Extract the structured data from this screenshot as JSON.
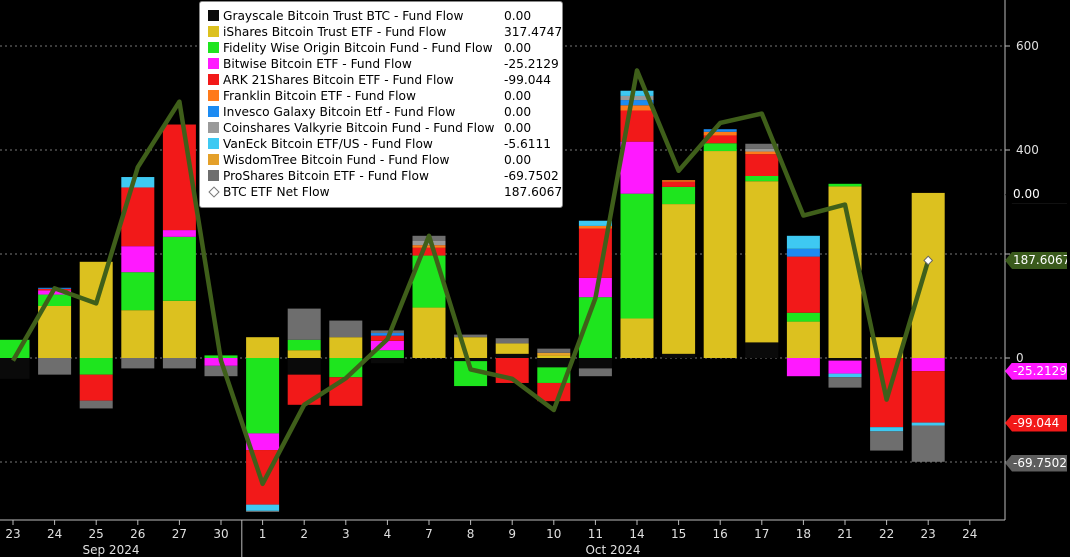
{
  "chart_data": {
    "type": "bar",
    "subtype": "stacked bar with net-flow line",
    "categories": [
      "23",
      "24",
      "25",
      "26",
      "27",
      "30",
      "1",
      "2",
      "3",
      "4",
      "7",
      "8",
      "9",
      "10",
      "11",
      "14",
      "15",
      "16",
      "17",
      "18",
      "21",
      "22",
      "23"
    ],
    "x_tick_labels": [
      "23",
      "24",
      "25",
      "26",
      "27",
      "30",
      "1",
      "2",
      "3",
      "4",
      "7",
      "8",
      "9",
      "10",
      "11",
      "14",
      "15",
      "16",
      "17",
      "18",
      "21",
      "22",
      "23",
      "24"
    ],
    "month_labels": [
      "Sep 2024",
      "Oct 2024"
    ],
    "y_ticks": [
      600,
      400,
      200,
      0,
      -200,
      -400
    ],
    "y_tick_labels": [
      "600",
      "400",
      "",
      "0",
      "",
      ""
    ],
    "ylim": [
      -300,
      680
    ],
    "grid": true,
    "legend_placement": "top-left",
    "series": [
      {
        "name": "Grayscale Bitcoin Trust BTC - Fund Flow",
        "color": "#0a0a0a",
        "legend_value": "0.00",
        "values": [
          -40,
          0,
          0,
          0,
          0,
          0,
          0,
          -32,
          0,
          -10,
          0,
          -6,
          8,
          -18,
          -20,
          0,
          8,
          0,
          30,
          0,
          -5,
          0,
          0
        ]
      },
      {
        "name": "iShares Bitcoin Trust ETF - Fund Flow",
        "color": "#dcc11f",
        "legend_value": "317.4747",
        "values": [
          0,
          100,
          185,
          92,
          110,
          0,
          40,
          15,
          40,
          0,
          97,
          40,
          20,
          5,
          0,
          76,
          288,
          398,
          310,
          70,
          330,
          40,
          317.4747
        ]
      },
      {
        "name": "Fidelity Wise Origin Bitcoin Fund - Fund Flow",
        "color": "#1ee51e",
        "legend_value": "0.00",
        "values": [
          35,
          22,
          -32,
          73,
          123,
          5,
          -145,
          20,
          -37,
          15,
          100,
          -48,
          0,
          -30,
          117,
          240,
          33,
          15,
          10,
          17,
          5,
          0,
          0
        ]
      },
      {
        "name": "Bitwise Bitcoin ETF - Fund Flow",
        "color": "#ff19ff",
        "legend_value": "-25.2129",
        "values": [
          0,
          8,
          0,
          50,
          13,
          -15,
          -32,
          0,
          0,
          18,
          0,
          0,
          0,
          0,
          37,
          100,
          0,
          0,
          0,
          -35,
          -25,
          0,
          -25.2129
        ]
      },
      {
        "name": "ARK 21Shares Bitcoin ETF - Fund Flow",
        "color": "#f21919",
        "legend_value": "-99.044",
        "values": [
          0,
          3,
          -50,
          113,
          203,
          0,
          -105,
          -58,
          -55,
          10,
          15,
          0,
          -48,
          -35,
          95,
          60,
          10,
          15,
          42,
          108,
          0,
          -133,
          -99.044
        ]
      },
      {
        "name": "Franklin Bitcoin ETF - Fund Flow",
        "color": "#ff7a1a",
        "legend_value": "0.00",
        "values": [
          0,
          0,
          0,
          0,
          0,
          0,
          0,
          0,
          0,
          0,
          5,
          0,
          0,
          0,
          5,
          10,
          3,
          7,
          5,
          0,
          0,
          0,
          0
        ]
      },
      {
        "name": "Invesco Galaxy Bitcoin Etf - Fund Flow",
        "color": "#1c8bf2",
        "legend_value": "0.00",
        "values": [
          0,
          2,
          0,
          0,
          0,
          0,
          0,
          0,
          0,
          5,
          0,
          0,
          0,
          0,
          0,
          10,
          0,
          5,
          0,
          15,
          0,
          0,
          0
        ]
      },
      {
        "name": "Coinshares Valkyrie Bitcoin Fund - Fund Flow",
        "color": "#9a9a9a",
        "legend_value": "0.00",
        "values": [
          0,
          0,
          0,
          0,
          0,
          0,
          0,
          0,
          0,
          0,
          8,
          0,
          0,
          0,
          0,
          8,
          0,
          0,
          5,
          0,
          0,
          0,
          0
        ]
      },
      {
        "name": "VanEck Bitcoin ETF/US - Fund Flow",
        "color": "#3ec9f2",
        "legend_value": "-5.6111",
        "values": [
          0,
          0,
          0,
          20,
          0,
          0,
          -12,
          0,
          0,
          0,
          0,
          0,
          0,
          0,
          10,
          10,
          0,
          0,
          0,
          25,
          -7,
          -8,
          -5.6111
        ]
      },
      {
        "name": "WisdomTree Bitcoin Fund - Fund Flow",
        "color": "#e4a02a",
        "legend_value": "0.00",
        "values": [
          0,
          0,
          0,
          0,
          0,
          0,
          0,
          0,
          0,
          0,
          0,
          0,
          0,
          5,
          0,
          0,
          0,
          0,
          0,
          0,
          0,
          0,
          0
        ]
      },
      {
        "name": "ProShares Bitcoin ETF - Fund Flow",
        "color": "#6e6e6e",
        "legend_value": "-69.7502",
        "values": [
          0,
          -32,
          -15,
          -20,
          -20,
          -20,
          -2,
          60,
          32,
          5,
          10,
          5,
          10,
          8,
          -15,
          0,
          0,
          0,
          10,
          0,
          -20,
          -37,
          -69.7502
        ]
      }
    ],
    "line": {
      "name": "BTC ETF Net Flow",
      "color": "#3f5f1a",
      "legend_value": "187.6067",
      "values": [
        -5,
        134,
        105,
        367,
        493,
        -5,
        -242,
        -90,
        -39,
        36,
        235,
        -22,
        -40,
        -100,
        115,
        553,
        360,
        452,
        470,
        274,
        295,
        -80,
        187.6067
      ]
    },
    "tags": [
      {
        "label": "0.00",
        "value": 314,
        "bg": "#000000",
        "fg": "#ffffff"
      },
      {
        "label": "187.6067",
        "value": 187.6067,
        "bg": "#3a5a1c",
        "fg": "#ffffff"
      },
      {
        "label": "-25.2129",
        "value": -25.2129,
        "bg": "#ff19ff",
        "fg": "#ffffff"
      },
      {
        "label": "-99.044",
        "value": -125,
        "bg": "#f21919",
        "fg": "#ffffff"
      },
      {
        "label": "-69.7502",
        "value": -202,
        "bg": "#5e5e5e",
        "fg": "#ffffff"
      }
    ]
  }
}
